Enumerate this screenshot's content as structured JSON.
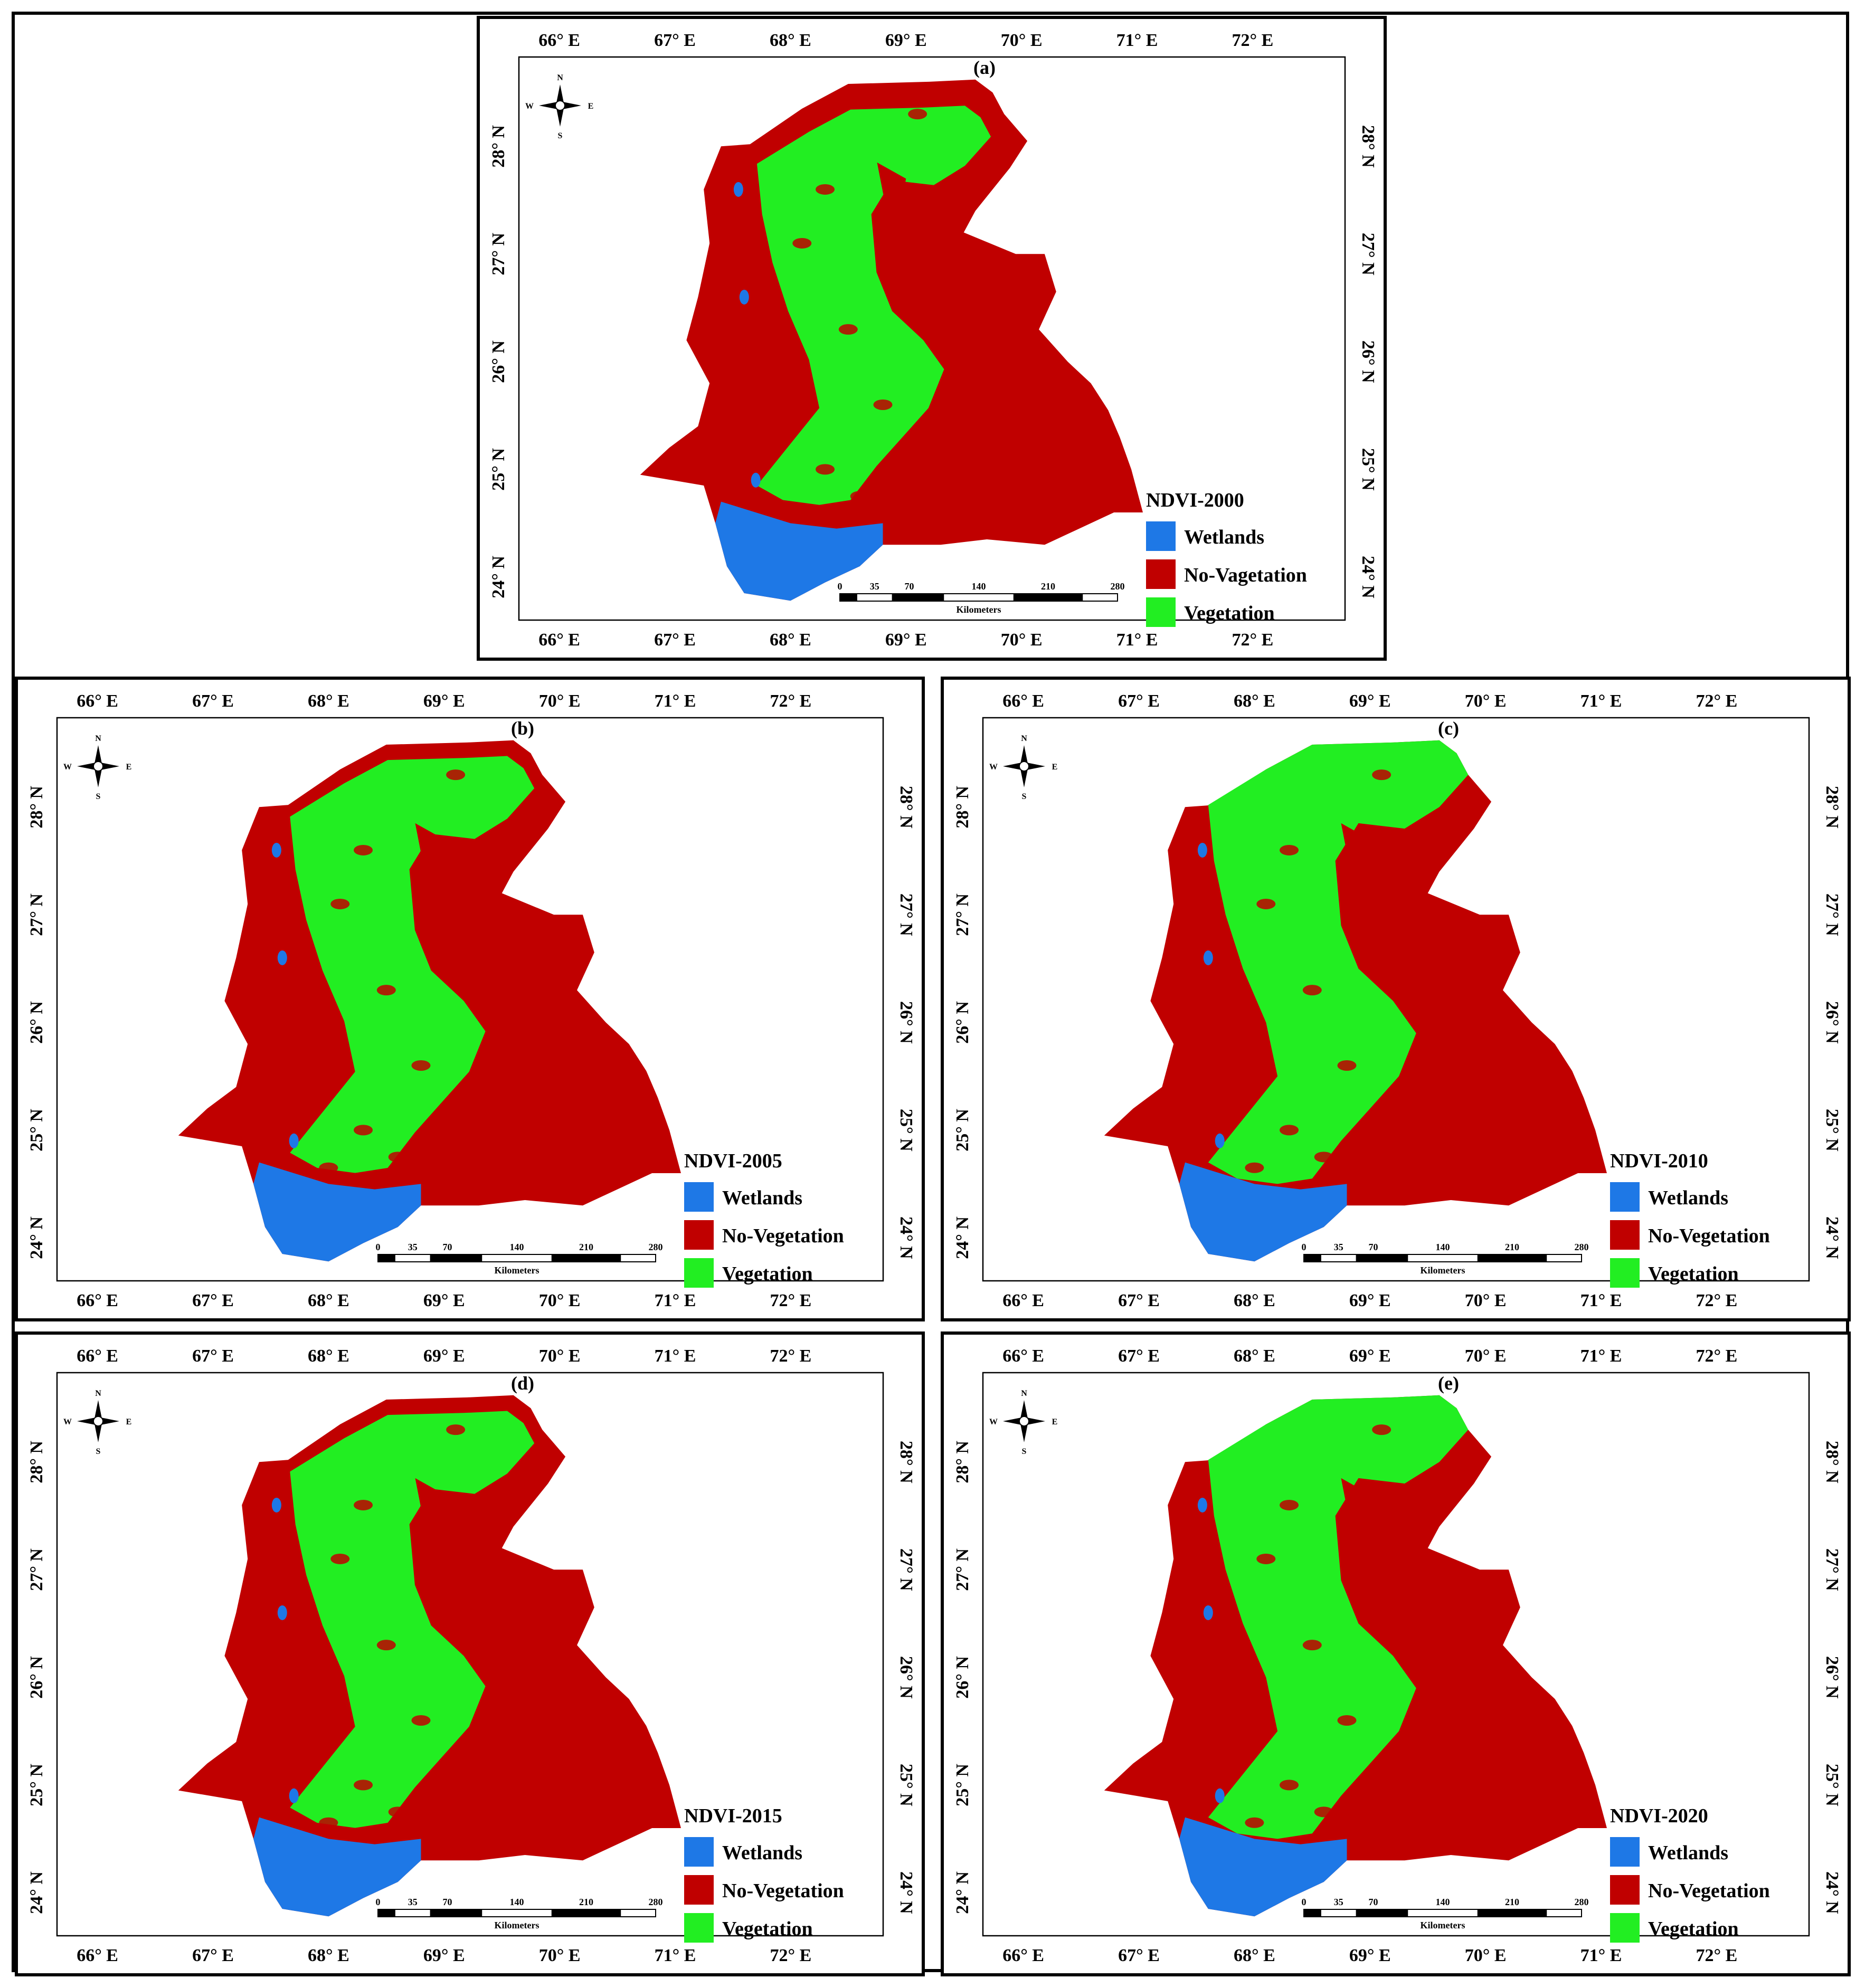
{
  "colors": {
    "wetlands": "#1e78e6",
    "no_vegetation": "#c00000",
    "vegetation": "#22ee22",
    "frame": "#000000"
  },
  "axes": {
    "lon_labels": [
      "66° E",
      "67° E",
      "68° E",
      "69° E",
      "70° E",
      "71° E",
      "72° E"
    ],
    "lat_labels": [
      "24° N",
      "25° N",
      "26° N",
      "27° N",
      "28° N"
    ]
  },
  "scale_bar": {
    "ticks": [
      "0",
      "35",
      "70",
      "140",
      "210",
      "280"
    ],
    "unit": "Kilometers"
  },
  "north_arrow": {
    "n": "N",
    "s": "S",
    "e": "E",
    "w": "W",
    "icon": "compass-rose-icon"
  },
  "panels": [
    {
      "id": "a",
      "label": "(a)",
      "legend_title": "NDVI-2000",
      "legend": [
        "Wetlands",
        "No-Vagetation",
        "Vegetation"
      ],
      "vegetation_level": 0.45
    },
    {
      "id": "b",
      "label": "(b)",
      "legend_title": "NDVI-2005",
      "legend": [
        "Wetlands",
        "No-Vegetation",
        "Vegetation"
      ],
      "vegetation_level": 0.47
    },
    {
      "id": "c",
      "label": "(c)",
      "legend_title": "NDVI-2010",
      "legend": [
        "Wetlands",
        "No-Vegetation",
        "Vegetation"
      ],
      "vegetation_level": 0.5
    },
    {
      "id": "d",
      "label": "(d)",
      "legend_title": "NDVI-2015",
      "legend": [
        "Wetlands",
        "No-Vegetation",
        "Vegetation"
      ],
      "vegetation_level": 0.47
    },
    {
      "id": "e",
      "label": "(e)",
      "legend_title": "NDVI-2020",
      "legend": [
        "Wetlands",
        "No-Vegetation",
        "Vegetation"
      ],
      "vegetation_level": 0.5
    }
  ]
}
